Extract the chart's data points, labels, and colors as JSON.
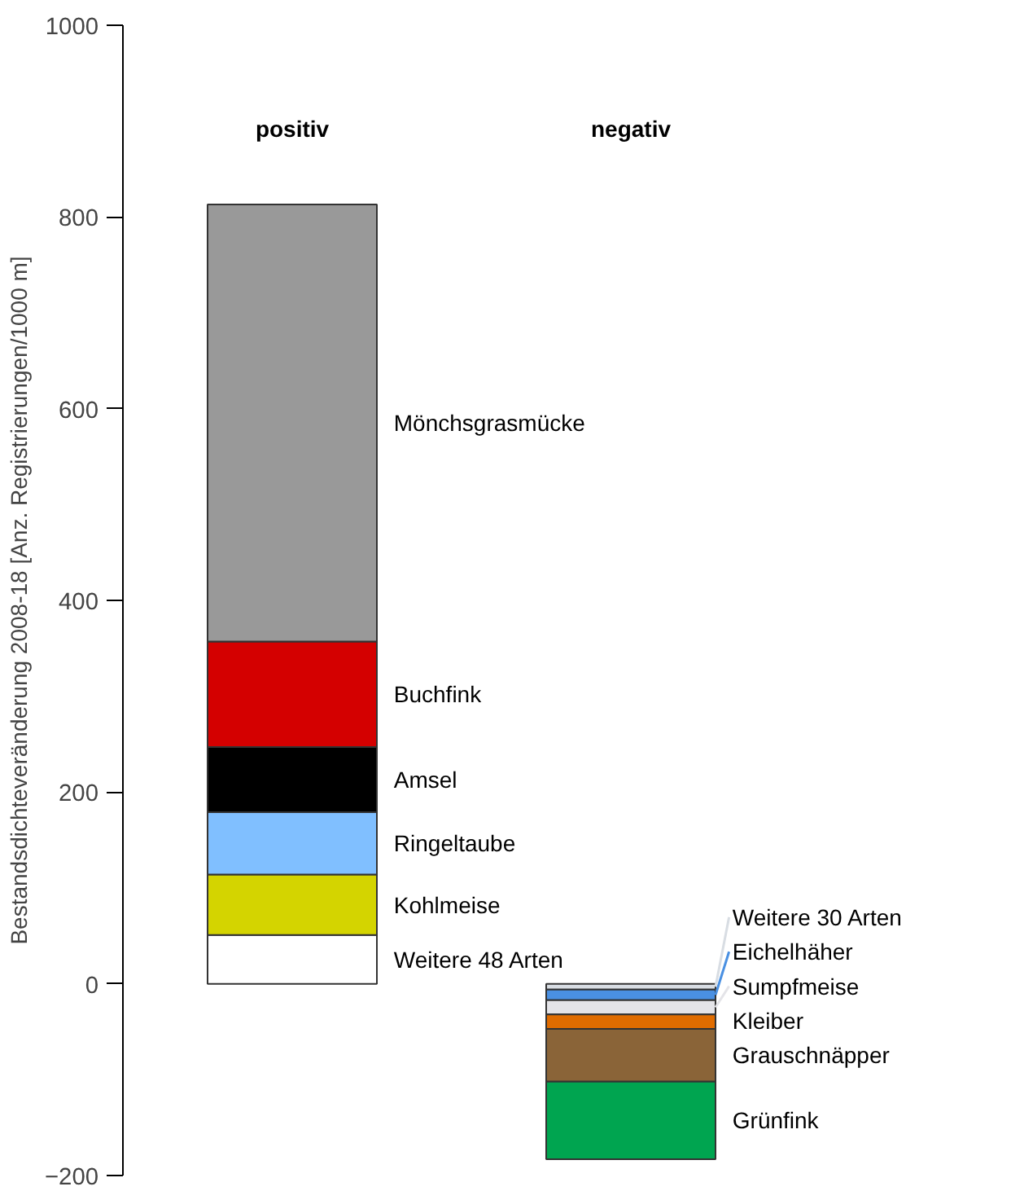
{
  "chart_data": {
    "type": "bar",
    "stacked": true,
    "ylabel": "Bestandsdichteveränderung 2008-18 [Anz. Registrierungen/1000 m]",
    "categories": [
      "positiv",
      "negativ"
    ],
    "ylim": [
      -200,
      1000
    ],
    "yticks": [
      -200,
      0,
      200,
      400,
      600,
      800,
      1000
    ],
    "series": [
      {
        "name": "Weitere 48 Arten",
        "color": "#ffffff",
        "values": [
          51,
          null
        ]
      },
      {
        "name": "Kohlmeise",
        "color": "#d4d400",
        "values": [
          63,
          null
        ]
      },
      {
        "name": "Ringeltaube",
        "color": "#80bfff",
        "values": [
          65,
          null
        ]
      },
      {
        "name": "Amsel",
        "color": "#000000",
        "values": [
          68,
          null
        ]
      },
      {
        "name": "Buchfink",
        "color": "#d40000",
        "values": [
          110,
          null
        ]
      },
      {
        "name": "Mönchsgrasmücke",
        "color": "#999999",
        "values": [
          456,
          null
        ]
      },
      {
        "name": "Weitere 30 Arten",
        "color": "#d8dde3",
        "values": [
          null,
          -6
        ]
      },
      {
        "name": "Eichelhäher",
        "color": "#4a90e2",
        "values": [
          null,
          -11
        ]
      },
      {
        "name": "Sumpfmeise",
        "color": "#e4e4e8",
        "values": [
          null,
          -15
        ]
      },
      {
        "name": "Kleiber",
        "color": "#e06c00",
        "values": [
          null,
          -15
        ]
      },
      {
        "name": "Grauschnäpper",
        "color": "#8a6438",
        "values": [
          null,
          -55
        ]
      },
      {
        "name": "Grünfink",
        "color": "#00a550",
        "values": [
          null,
          -81
        ]
      }
    ]
  }
}
